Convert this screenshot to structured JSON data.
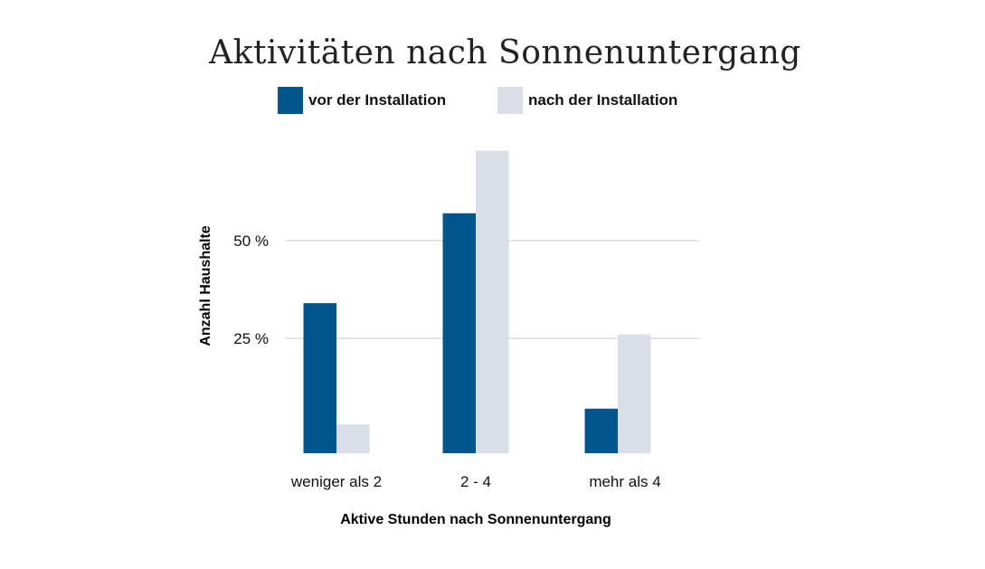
{
  "chart_data": {
    "type": "bar",
    "title": "Aktivitäten nach Sonnenuntergang",
    "xlabel": "Aktive Stunden nach Sonnenuntergang",
    "ylabel": "Anzahl Haushalte",
    "categories": [
      "weniger als 2",
      "2 - 4",
      "mehr als 4"
    ],
    "series": [
      {
        "name": "vor der Installation",
        "values": [
          34,
          57,
          7
        ],
        "color": "#00558c"
      },
      {
        "name": "nach der Installation",
        "values": [
          3,
          73,
          26
        ],
        "color": "#d9dee9"
      }
    ],
    "yticks": [
      {
        "value": 25,
        "label": "25 %"
      },
      {
        "value": 50,
        "label": "50 %"
      }
    ],
    "ylim": [
      0,
      75
    ],
    "grid": true,
    "legend_placement": "top"
  }
}
